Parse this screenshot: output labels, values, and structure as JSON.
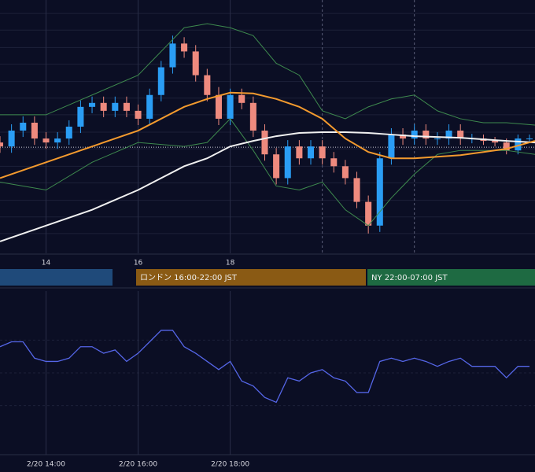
{
  "charts": [
    {
      "type": "candlestick",
      "xlim": [
        13,
        24.62
      ],
      "ylim": [
        0,
        320
      ],
      "xticks": [
        14,
        16,
        18
      ],
      "yticks": [
        25,
        46,
        67,
        89,
        110,
        132,
        153,
        175,
        196,
        217,
        239,
        260,
        282,
        303
      ],
      "vlines": [
        20,
        22
      ],
      "price_line": 134,
      "up_color": "#2a9df4",
      "down_color": "#ee8a7e",
      "x": [
        13,
        13.25,
        13.5,
        13.75,
        14,
        14.25,
        14.5,
        14.75,
        15,
        15.25,
        15.5,
        15.75,
        16,
        16.25,
        16.5,
        16.75,
        17,
        17.25,
        17.5,
        17.75,
        18,
        18.25,
        18.5,
        18.75,
        19,
        19.25,
        19.5,
        19.75,
        20,
        20.25,
        20.5,
        20.75,
        21,
        21.25,
        21.5,
        21.75,
        22,
        22.25,
        22.5,
        22.75,
        23,
        23.25,
        23.5,
        23.75,
        24,
        24.25,
        24.5
      ],
      "open": [
        140,
        135,
        155,
        165,
        145,
        140,
        145,
        160,
        185,
        190,
        180,
        190,
        180,
        170,
        200,
        235,
        265,
        255,
        225,
        200,
        170,
        200,
        190,
        155,
        125,
        95,
        135,
        120,
        135,
        120,
        110,
        95,
        65,
        35,
        120,
        150,
        145,
        155,
        145,
        145,
        155,
        145,
        145,
        142,
        140,
        130,
        145
      ],
      "high": [
        148,
        163,
        173,
        173,
        153,
        153,
        168,
        193,
        198,
        198,
        198,
        198,
        188,
        208,
        243,
        275,
        273,
        263,
        233,
        210,
        208,
        208,
        198,
        163,
        133,
        143,
        143,
        143,
        143,
        128,
        118,
        103,
        73,
        128,
        158,
        158,
        163,
        163,
        153,
        163,
        163,
        151,
        150,
        147,
        145,
        150,
        150
      ],
      "low": [
        127,
        127,
        147,
        137,
        132,
        132,
        137,
        152,
        177,
        172,
        172,
        172,
        162,
        162,
        192,
        227,
        247,
        217,
        192,
        162,
        162,
        182,
        147,
        117,
        87,
        87,
        112,
        112,
        112,
        102,
        87,
        57,
        25,
        27,
        112,
        137,
        137,
        137,
        137,
        137,
        137,
        139,
        137,
        135,
        125,
        125,
        140
      ],
      "close": [
        135,
        155,
        165,
        145,
        140,
        145,
        160,
        185,
        190,
        180,
        190,
        180,
        170,
        200,
        235,
        265,
        255,
        225,
        200,
        170,
        200,
        190,
        155,
        125,
        95,
        135,
        120,
        135,
        120,
        110,
        95,
        65,
        35,
        120,
        150,
        145,
        155,
        145,
        145,
        155,
        145,
        145,
        142,
        140,
        130,
        145,
        145
      ],
      "overlay_x": [
        13,
        14,
        15,
        16,
        17,
        17.5,
        18,
        18.5,
        19,
        19.5,
        20,
        20.5,
        21,
        21.5,
        22,
        22.5,
        23,
        23.5,
        24,
        24.62
      ],
      "overlays": [
        {
          "color": "#3e8a4e",
          "values": [
            175,
            175,
            200,
            225,
            285,
            290,
            285,
            275,
            240,
            225,
            180,
            170,
            185,
            195,
            200,
            180,
            170,
            165,
            165,
            162
          ]
        },
        {
          "color": "#3e8a4e",
          "values": [
            90,
            80,
            115,
            140,
            135,
            140,
            170,
            130,
            85,
            80,
            90,
            55,
            35,
            70,
            100,
            125,
            130,
            130,
            130,
            125
          ]
        },
        {
          "color": "#f0f0f0",
          "values": [
            15,
            35,
            55,
            80,
            110,
            120,
            135,
            142,
            148,
            152,
            153,
            153,
            152,
            150,
            148,
            147,
            146,
            144,
            142,
            140
          ]
        },
        {
          "color": "#f39a2e",
          "values": [
            95,
            115,
            135,
            155,
            185,
            195,
            203,
            202,
            195,
            185,
            170,
            145,
            128,
            120,
            120,
            122,
            124,
            128,
            132,
            142
          ]
        }
      ],
      "sessions": [
        {
          "label": "ロンドン 16:00-22:00 JST",
          "color": "#8a5a14"
        },
        {
          "label": "NY 22:00-07:00 JST",
          "color": "#1e6a42"
        }
      ]
    },
    {
      "type": "line",
      "xlim": [
        13,
        24.62
      ],
      "ylim": [
        0,
        100
      ],
      "xticks": [
        {
          "value": 14,
          "label": "2/20 14:00"
        },
        {
          "value": 16,
          "label": "2/20 16:00"
        },
        {
          "value": 18,
          "label": "2/20 18:00"
        }
      ],
      "yticks": [
        30,
        50,
        70
      ],
      "color": "#5566e8",
      "x": [
        13,
        13.25,
        13.5,
        13.75,
        14,
        14.25,
        14.5,
        14.75,
        15,
        15.25,
        15.5,
        15.75,
        16,
        16.25,
        16.5,
        16.75,
        17,
        17.25,
        17.5,
        17.75,
        18,
        18.25,
        18.5,
        18.75,
        19,
        19.25,
        19.5,
        19.75,
        20,
        20.25,
        20.5,
        20.75,
        21,
        21.25,
        21.5,
        21.75,
        22,
        22.25,
        22.5,
        22.75,
        23,
        23.25,
        23.5,
        23.75,
        24,
        24.25,
        24.5
      ],
      "values": [
        66,
        69,
        69,
        59,
        57,
        57,
        59,
        66,
        66,
        62,
        64,
        57,
        62,
        69,
        76,
        76,
        66,
        62,
        57,
        52,
        57,
        45,
        42,
        35,
        32,
        47,
        45,
        50,
        52,
        47,
        45,
        38,
        38,
        57,
        59,
        57,
        59,
        57,
        54,
        57,
        59,
        54,
        54,
        54,
        47,
        54,
        54
      ]
    }
  ]
}
